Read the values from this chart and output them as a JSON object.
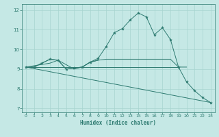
{
  "title": "",
  "xlabel": "Humidex (Indice chaleur)",
  "bg_color": "#c5e8e5",
  "line_color": "#2d7a70",
  "grid_color": "#a8d5d0",
  "xlim": [
    -0.5,
    23.5
  ],
  "ylim": [
    6.8,
    12.3
  ],
  "xticks": [
    0,
    1,
    2,
    3,
    4,
    5,
    6,
    7,
    8,
    9,
    10,
    11,
    12,
    13,
    14,
    15,
    16,
    17,
    18,
    19,
    20,
    21,
    22,
    23
  ],
  "yticks": [
    7,
    8,
    9,
    10,
    11,
    12
  ],
  "curve1_x": [
    0,
    1,
    2,
    3,
    4,
    5,
    6,
    7,
    8,
    9,
    10,
    11,
    12,
    13,
    14,
    15,
    16,
    17,
    18,
    19,
    20,
    21,
    22,
    23
  ],
  "curve1_y": [
    9.1,
    9.1,
    9.3,
    9.5,
    9.45,
    9.0,
    9.05,
    9.1,
    9.35,
    9.55,
    10.15,
    10.85,
    11.05,
    11.5,
    11.85,
    11.65,
    10.75,
    11.1,
    10.5,
    9.1,
    8.35,
    7.9,
    7.55,
    7.3
  ],
  "curve2_x": [
    0,
    1,
    2,
    3,
    4,
    5,
    6,
    7,
    8,
    9,
    10,
    11,
    12,
    13,
    14,
    15,
    16,
    17,
    18,
    19,
    20
  ],
  "curve2_y": [
    9.1,
    9.1,
    9.3,
    9.5,
    9.45,
    9.0,
    9.05,
    9.1,
    9.35,
    9.45,
    9.5,
    9.5,
    9.5,
    9.5,
    9.5,
    9.5,
    9.5,
    9.5,
    9.5,
    9.1,
    9.1
  ],
  "curve3_x": [
    0,
    19
  ],
  "curve3_y": [
    9.1,
    9.1
  ],
  "curve4_x": [
    0,
    23
  ],
  "curve4_y": [
    9.1,
    7.3
  ],
  "curve5_x": [
    0,
    3,
    4,
    6,
    7,
    8,
    9
  ],
  "curve5_y": [
    9.1,
    9.3,
    9.45,
    9.0,
    9.1,
    9.35,
    9.45
  ]
}
